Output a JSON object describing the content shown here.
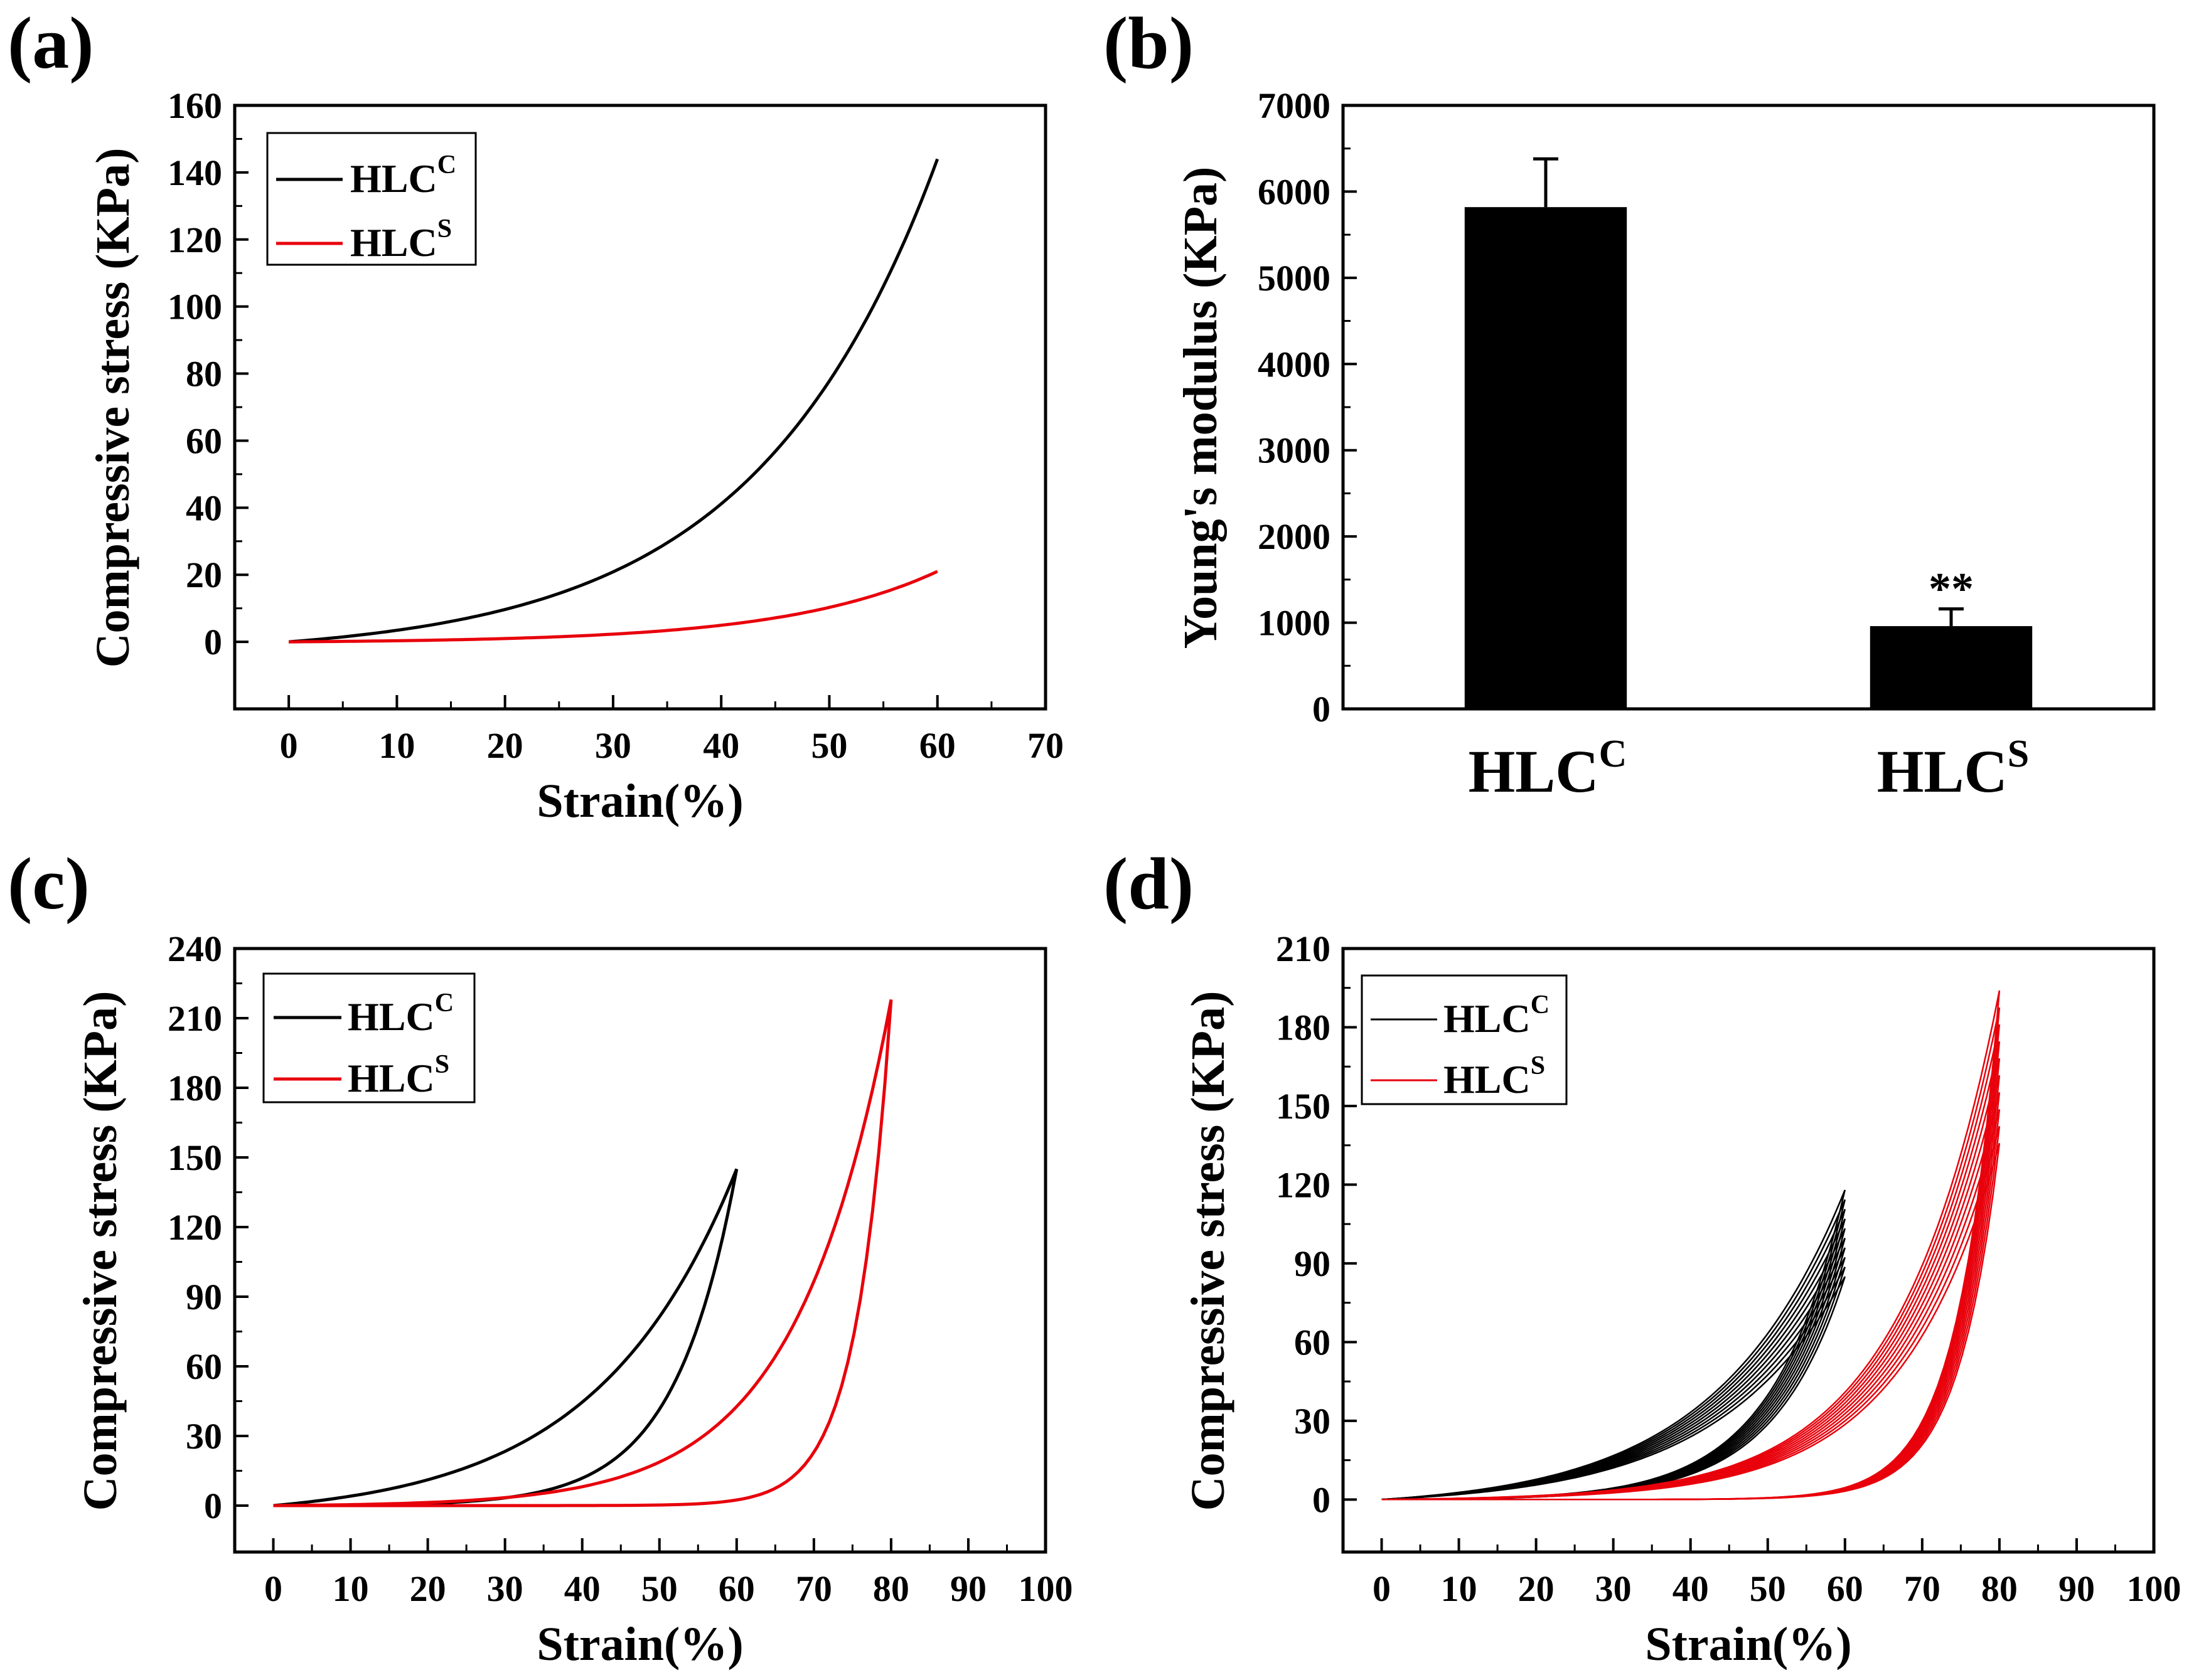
{
  "chart_data": [
    {
      "panel": "(a)",
      "type": "line",
      "xlabel": "Strain(%)",
      "ylabel": "Compressive stress (KPa)",
      "xlim": [
        -5,
        70
      ],
      "ylim": [
        -20,
        160
      ],
      "xticks": [
        0,
        10,
        20,
        30,
        40,
        50,
        60,
        70
      ],
      "yticks": [
        0,
        20,
        40,
        60,
        80,
        100,
        120,
        140,
        160
      ],
      "legend_position": "top-left",
      "series": [
        {
          "name": "HLC",
          "sup": "C",
          "color": "#000000",
          "kind": "exp",
          "x_max": 60,
          "y_max": 144,
          "k": 3.55
        },
        {
          "name": "HLC",
          "sup": "S",
          "color": "#e8000b",
          "kind": "exp",
          "x_max": 60,
          "y_max": 21,
          "k": 4.2
        }
      ]
    },
    {
      "panel": "(b)",
      "type": "bar",
      "ylabel": "Young's modulus (KPa)",
      "ylim": [
        0,
        7000
      ],
      "yticks": [
        0,
        1000,
        2000,
        3000,
        4000,
        5000,
        6000,
        7000
      ],
      "categories": [
        {
          "name": "HLC",
          "sup": "C"
        },
        {
          "name": "HLC",
          "sup": "S"
        }
      ],
      "values": [
        5820,
        960
      ],
      "errors": [
        560,
        200
      ],
      "annotations": [
        "",
        "**"
      ],
      "bar_color": "#000000"
    },
    {
      "panel": "(c)",
      "type": "line",
      "xlabel": "Strain(%)",
      "ylabel": "Compressive stress (KPa)",
      "xlim": [
        -5,
        100
      ],
      "ylim": [
        -20,
        240
      ],
      "xticks": [
        0,
        10,
        20,
        30,
        40,
        50,
        60,
        70,
        80,
        90,
        100
      ],
      "yticks": [
        0,
        30,
        60,
        90,
        120,
        150,
        180,
        210,
        240
      ],
      "legend_position": "top-left",
      "series": [
        {
          "name": "HLC",
          "sup": "C",
          "color": "#000000",
          "kind": "hyst",
          "x_max": 60,
          "y_max": 145,
          "k_load": 3.3,
          "k_unload": 7.5,
          "cycles": 1,
          "spread": 0
        },
        {
          "name": "HLC",
          "sup": "S",
          "color": "#e8000b",
          "kind": "hyst",
          "x_max": 80,
          "y_max": 218,
          "k_load": 6.5,
          "k_unload": 18,
          "cycles": 1,
          "spread": 0
        }
      ]
    },
    {
      "panel": "(d)",
      "type": "line",
      "xlabel": "Strain(%)",
      "ylabel": "Compressive stress (KPa)",
      "xlim": [
        -5,
        100
      ],
      "ylim": [
        -20,
        210
      ],
      "xticks": [
        0,
        10,
        20,
        30,
        40,
        50,
        60,
        70,
        80,
        90,
        100
      ],
      "yticks": [
        0,
        30,
        60,
        90,
        120,
        150,
        180,
        210
      ],
      "legend_position": "top-left",
      "series": [
        {
          "name": "HLC",
          "sup": "C",
          "color": "#000000",
          "kind": "hyst",
          "x_max": 60,
          "y_max": 118,
          "k_load": 3.6,
          "k_unload": 6.5,
          "cycles": 10,
          "spread": 28
        },
        {
          "name": "HLC",
          "sup": "S",
          "color": "#e8000b",
          "kind": "hyst",
          "x_max": 80,
          "y_max": 194,
          "k_load": 6.2,
          "k_unload": 15,
          "cycles": 10,
          "spread": 30
        }
      ]
    }
  ]
}
